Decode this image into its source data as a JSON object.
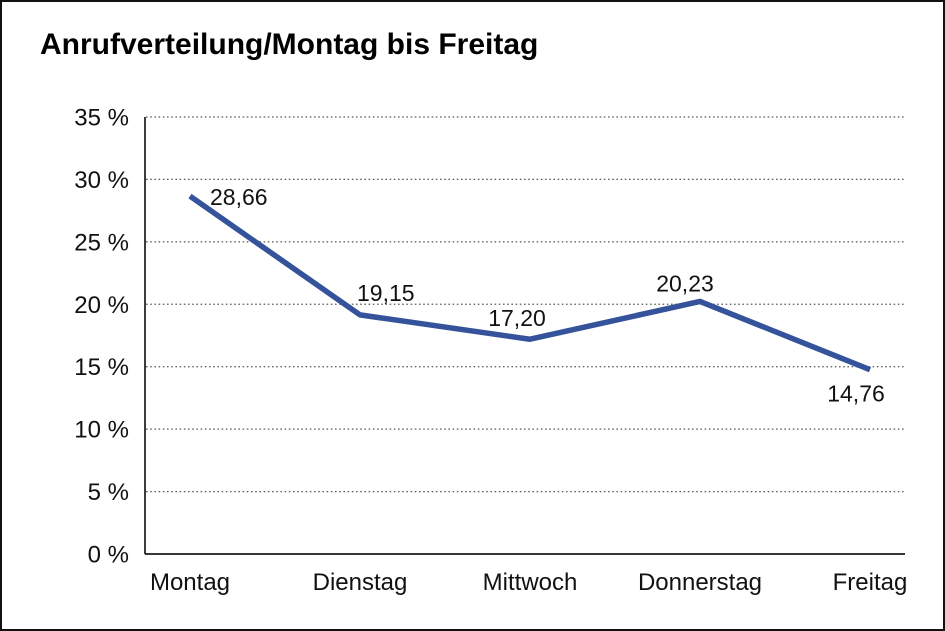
{
  "chart_data": {
    "type": "line",
    "title": "Anrufverteilung/Montag bis Freitag",
    "categories": [
      "Montag",
      "Dienstag",
      "Mittwoch",
      "Donnerstag",
      "Freitag"
    ],
    "values": [
      28.66,
      19.15,
      17.2,
      20.23,
      14.76
    ],
    "point_labels": [
      "28,66",
      "19,15",
      "17,20",
      "20,23",
      "14,76"
    ],
    "series_name": "Anrufverteilung",
    "xlabel": "",
    "ylabel": "",
    "ylim": [
      0,
      35
    ],
    "y_ticks": [
      0,
      5,
      10,
      15,
      20,
      25,
      30,
      35
    ],
    "y_tick_labels": [
      "0 %",
      "5 %",
      "10 %",
      "15 %",
      "20 %",
      "25 %",
      "30 %",
      "35 %"
    ],
    "grid": "horizontal-dotted",
    "legend": "none",
    "colors": {
      "line": "#35539B",
      "axis": "#1a1a1a",
      "gridline": "#595959",
      "text": "#111111",
      "background": "#ffffff",
      "frame_border": "#111111"
    }
  }
}
